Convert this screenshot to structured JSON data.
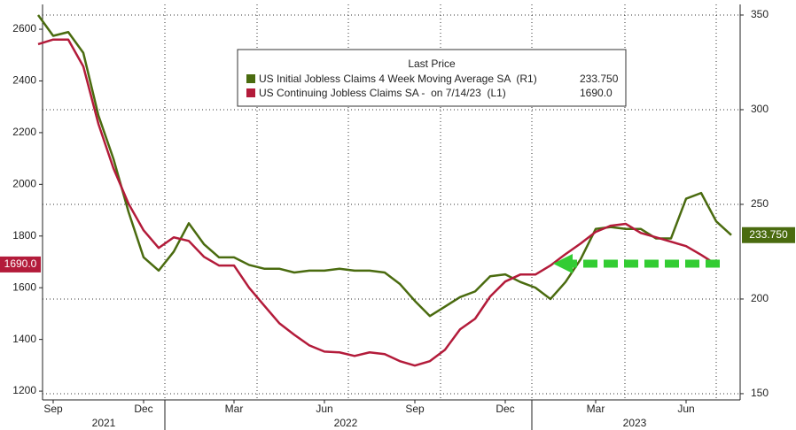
{
  "chart_data": {
    "type": "line",
    "legend_title": "Last Price",
    "categories": [
      null,
      "Sep",
      null,
      null,
      null,
      null,
      null,
      "Dec",
      null,
      null,
      null,
      null,
      null,
      "Mar",
      null,
      null,
      null,
      null,
      null,
      "Jun",
      null,
      null,
      null,
      null,
      null,
      "Sep",
      null,
      null,
      null,
      null,
      null,
      "Dec",
      null,
      null,
      null,
      null,
      null,
      "Mar",
      null,
      null,
      null,
      null,
      null,
      "Jun",
      null,
      null,
      null
    ],
    "years": [
      "2021",
      "2022",
      "2023"
    ],
    "ylim": [
      1166,
      2696
    ],
    "yticks": [
      1200,
      1400,
      1600,
      1800,
      2000,
      2200,
      2400,
      2600
    ],
    "y2lim": [
      146.7,
      355.6
    ],
    "y2ticks": [
      150,
      200,
      250,
      300,
      350
    ],
    "grid": true,
    "series": [
      {
        "name": "US Initial Jobless Claims 4 Week Moving Average SA  (R1)",
        "color": "#4a6b0f",
        "axis": "y2",
        "last_value_label": "233.750",
        "values": [
          350,
          339,
          341,
          330,
          297,
          274,
          246,
          222,
          215,
          225,
          240,
          229,
          222,
          222,
          218,
          216,
          216,
          214,
          215,
          215,
          216,
          215,
          215,
          214,
          208,
          199,
          191,
          196,
          201,
          204,
          212,
          213,
          209,
          206,
          200,
          209,
          221,
          237,
          238,
          237,
          237,
          232,
          232,
          253,
          256,
          241,
          233.75
        ]
      },
      {
        "name": "US Continuing Jobless Claims SA -  on 7/14/23  (L1)",
        "color": "#b31b3a",
        "axis": "y",
        "last_value_label": "1690.0",
        "values": [
          2542,
          2560,
          2560,
          2456,
          2234,
          2062,
          1925,
          1822,
          1754,
          1795,
          1781,
          1720,
          1686,
          1686,
          1600,
          1531,
          1463,
          1418,
          1377,
          1353,
          1350,
          1336,
          1350,
          1343,
          1316,
          1299,
          1316,
          1360,
          1439,
          1480,
          1566,
          1624,
          1651,
          1651,
          1686,
          1730,
          1771,
          1816,
          1840,
          1847,
          1812,
          1795,
          1778,
          1761,
          1727,
          1690,
          null
        ]
      }
    ]
  }
}
